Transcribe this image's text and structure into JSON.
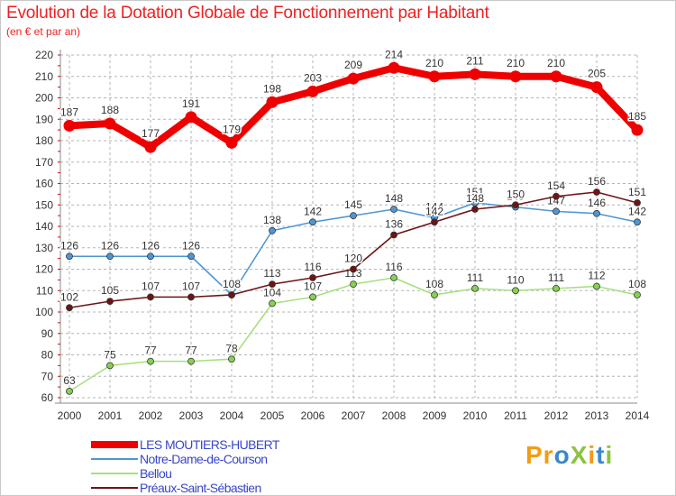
{
  "title": "Evolution de la Dotation Globale de Fonctionnement par Habitant",
  "subtitle": "(en € et par an)",
  "logo": {
    "text": "ProXiti"
  },
  "colors": {
    "grid": "#b4b4b4",
    "axis_text": "#333333",
    "legend_text": "#3a46c8"
  },
  "chart_data": {
    "type": "line",
    "x": [
      2000,
      2001,
      2002,
      2003,
      2004,
      2005,
      2006,
      2007,
      2008,
      2009,
      2010,
      2011,
      2012,
      2013,
      2014
    ],
    "ylim": [
      60,
      220
    ],
    "yticks": [
      60,
      70,
      80,
      90,
      100,
      110,
      120,
      130,
      140,
      150,
      160,
      170,
      180,
      190,
      200,
      210,
      220
    ],
    "grid": true,
    "legend_position": "bottom",
    "series": [
      {
        "name": "LES MOUTIERS-HUBERT",
        "color": "#ee0000",
        "line_color": "#ee0000",
        "thick": true,
        "values": [
          187,
          188,
          177,
          191,
          179,
          198,
          203,
          209,
          214,
          210,
          211,
          210,
          210,
          205,
          185
        ]
      },
      {
        "name": "Notre-Dame-de-Courson",
        "color": "#4f96d2",
        "line_color": "#4f96d2",
        "thick": false,
        "values": [
          126,
          126,
          126,
          126,
          108,
          138,
          142,
          145,
          148,
          144,
          151,
          149,
          147,
          146,
          142
        ]
      },
      {
        "name": "Bellou",
        "color": "#86d153",
        "line_color": "#a6e07e",
        "thick": false,
        "values": [
          63,
          75,
          77,
          77,
          78,
          104,
          107,
          113,
          116,
          108,
          111,
          110,
          111,
          112,
          108
        ]
      },
      {
        "name": "Préaux-Saint-Sébastien",
        "color": "#6e1414",
        "line_color": "#6e1414",
        "thick": false,
        "values": [
          102,
          105,
          107,
          107,
          108,
          113,
          116,
          120,
          136,
          142,
          148,
          150,
          154,
          156,
          151
        ]
      }
    ]
  }
}
